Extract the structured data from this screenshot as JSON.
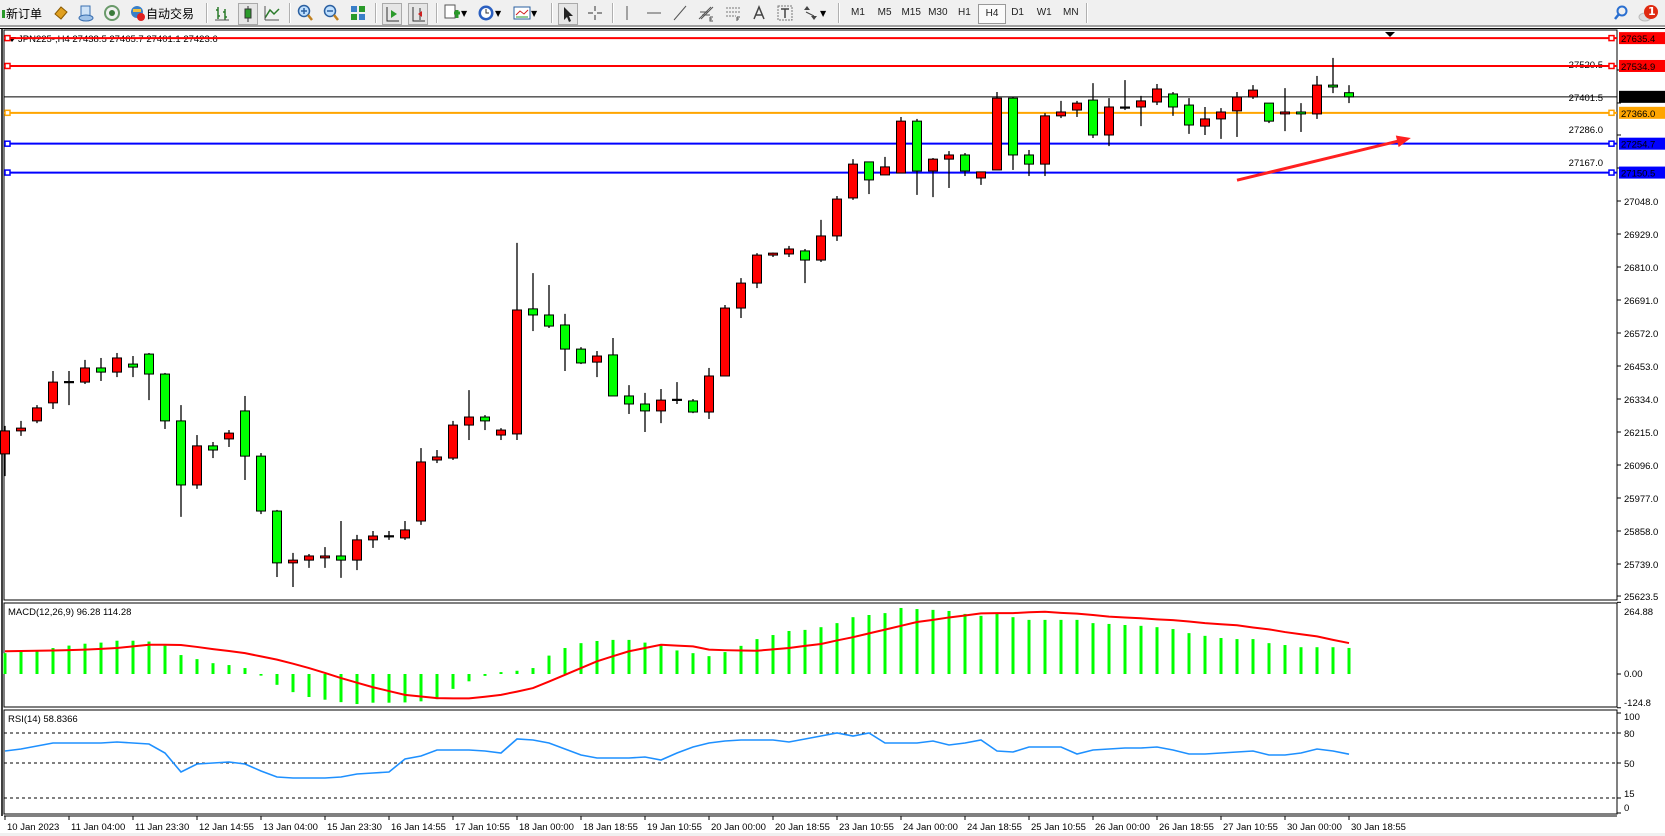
{
  "toolbar": {
    "new_order_label": "新订单",
    "auto_trading_label": "自动交易",
    "icons": [
      "new-order-icon",
      "metaeditor-icon",
      "navigator-icon",
      "market-watch-icon",
      "auto-trading-icon",
      "bar-chart-icon",
      "candlestick-icon",
      "line-chart-icon",
      "zoom-in-icon",
      "zoom-out-icon",
      "tile-windows-icon",
      "auto-scroll-icon",
      "chart-shift-icon",
      "indicators-icon",
      "periods-icon",
      "templates-icon",
      "cursor-icon",
      "crosshair-icon",
      "vertical-line-icon",
      "horizontal-line-icon",
      "trendline-icon",
      "fibonacci-icon",
      "fibo-levels-icon",
      "text-icon",
      "text-label-icon",
      "arrows-icon",
      "search-icon",
      "notification-icon"
    ],
    "timeframes": [
      "M1",
      "M5",
      "M15",
      "M30",
      "H1",
      "H4",
      "D1",
      "W1",
      "MN"
    ],
    "active_timeframe": "H4",
    "notification_count": "1"
  },
  "chart_header": "JPN225-,H4  27438.5 27465.7 27401.1 27423.6",
  "colors": {
    "bull": "#ff0000",
    "bear": "#00ff00",
    "macd_hist": "#00ff00",
    "macd_signal": "#ff0000",
    "rsi": "#1e90ff",
    "arrow": "#ff2020"
  },
  "chart_data": [
    {
      "type": "candlestick",
      "symbol": "JPN225-",
      "timeframe": "H4",
      "ylim": [
        25623.5,
        27635.4
      ],
      "y_ticks": [
        "27520.5",
        "27401.5",
        "27286.0",
        "27167.0",
        "27048.0",
        "26929.0",
        "26810.0",
        "26691.0",
        "26572.0",
        "26453.0",
        "26334.0",
        "26215.0",
        "26096.0",
        "25977.0",
        "25858.0",
        "25739.0",
        "25623.5"
      ],
      "x_tick_labels": [
        "10 Jan 2023",
        "11 Jan 04:00",
        "11 Jan 23:30",
        "12 Jan 14:55",
        "13 Jan 04:00",
        "15 Jan 23:30",
        "16 Jan 14:55",
        "17 Jan 10:55",
        "18 Jan 00:00",
        "18 Jan 18:55",
        "19 Jan 10:55",
        "20 Jan 00:00",
        "20 Jan 18:55",
        "23 Jan 10:55",
        "24 Jan 00:00",
        "24 Jan 18:55",
        "25 Jan 10:55",
        "26 Jan 00:00",
        "26 Jan 18:55",
        "27 Jan 10:55",
        "30 Jan 00:00",
        "30 Jan 18:55"
      ],
      "x_tick_every": 4,
      "ohlc": [
        [
          26136,
          26237,
          26056,
          26219
        ],
        [
          26219,
          26255,
          26201,
          26229
        ],
        [
          26255,
          26312,
          26247,
          26302
        ],
        [
          26320,
          26435,
          26298,
          26395
        ],
        [
          26395,
          26435,
          26312,
          26397
        ],
        [
          26395,
          26475,
          26388,
          26446
        ],
        [
          26446,
          26482,
          26399,
          26431
        ],
        [
          26431,
          26500,
          26413,
          26482
        ],
        [
          26460,
          26489,
          26413,
          26449
        ],
        [
          26496,
          26500,
          26330,
          26424
        ],
        [
          26424,
          26428,
          26226,
          26255
        ],
        [
          26255,
          26312,
          25909,
          26024
        ],
        [
          26024,
          26204,
          26010,
          26165
        ],
        [
          26165,
          26179,
          26121,
          26150
        ],
        [
          26190,
          26222,
          26161,
          26211
        ],
        [
          26291,
          26345,
          26042,
          26128
        ],
        [
          26128,
          26139,
          25919,
          25930
        ],
        [
          25930,
          25934,
          25692,
          25743
        ],
        [
          25743,
          25779,
          25656,
          25753
        ],
        [
          25753,
          25775,
          25725,
          25768
        ],
        [
          25761,
          25800,
          25725,
          25768
        ],
        [
          25768,
          25894,
          25689,
          25753
        ],
        [
          25753,
          25844,
          25717,
          25826
        ],
        [
          25826,
          25858,
          25797,
          25840
        ],
        [
          25840,
          25858,
          25826,
          25841
        ],
        [
          25833,
          25894,
          25826,
          25862
        ],
        [
          25894,
          26157,
          25880,
          26107
        ],
        [
          26114,
          26150,
          26103,
          26125
        ],
        [
          26121,
          26255,
          26114,
          26240
        ],
        [
          26240,
          26366,
          26186,
          26269
        ],
        [
          26269,
          26276,
          26222,
          26255
        ],
        [
          26204,
          26229,
          26186,
          26222
        ],
        [
          26208,
          26897,
          26186,
          26655
        ],
        [
          26659,
          26788,
          26579,
          26637
        ],
        [
          26637,
          26745,
          26590,
          26597
        ],
        [
          26601,
          26641,
          26435,
          26514
        ],
        [
          26514,
          26521,
          26460,
          26464
        ],
        [
          26467,
          26507,
          26413,
          26489
        ],
        [
          26493,
          26554,
          26345,
          26345
        ],
        [
          26345,
          26384,
          26280,
          26316
        ],
        [
          26316,
          26356,
          26215,
          26291
        ],
        [
          26291,
          26370,
          26247,
          26330
        ],
        [
          26330,
          26395,
          26316,
          26333
        ],
        [
          26327,
          26334,
          26283,
          26287
        ],
        [
          26287,
          26446,
          26262,
          26417
        ],
        [
          26417,
          26673,
          26417,
          26662
        ],
        [
          26662,
          26770,
          26626,
          26752
        ],
        [
          26752,
          26860,
          26734,
          26853
        ],
        [
          26853,
          26862,
          26846,
          26860
        ],
        [
          26857,
          26886,
          26846,
          26875
        ],
        [
          26868,
          26875,
          26752,
          26835
        ],
        [
          26835,
          26980,
          26828,
          26922
        ],
        [
          26922,
          27066,
          26904,
          27055
        ],
        [
          27059,
          27199,
          27052,
          27181
        ],
        [
          27189,
          27189,
          27073,
          27124
        ],
        [
          27142,
          27207,
          27142,
          27171
        ],
        [
          27149,
          27351,
          27149,
          27336
        ],
        [
          27336,
          27344,
          27070,
          27156
        ],
        [
          27156,
          27203,
          27062,
          27199
        ],
        [
          27199,
          27228,
          27095,
          27214
        ],
        [
          27214,
          27221,
          27138,
          27156
        ],
        [
          27131,
          27153,
          27106,
          27153
        ],
        [
          27160,
          27441,
          27160,
          27419
        ],
        [
          27419,
          27423,
          27160,
          27214
        ],
        [
          27214,
          27232,
          27138,
          27181
        ],
        [
          27181,
          27365,
          27138,
          27355
        ],
        [
          27355,
          27409,
          27347,
          27369
        ],
        [
          27376,
          27409,
          27351,
          27401
        ],
        [
          27412,
          27473,
          27275,
          27286
        ],
        [
          27286,
          27419,
          27246,
          27387
        ],
        [
          27385,
          27484,
          27376,
          27387
        ],
        [
          27387,
          27427,
          27318,
          27409
        ],
        [
          27405,
          27470,
          27394,
          27452
        ],
        [
          27434,
          27441,
          27355,
          27387
        ],
        [
          27394,
          27419,
          27290,
          27322
        ],
        [
          27318,
          27387,
          27286,
          27344
        ],
        [
          27344,
          27383,
          27272,
          27369
        ],
        [
          27373,
          27441,
          27279,
          27423
        ],
        [
          27423,
          27466,
          27416,
          27448
        ],
        [
          27401,
          27401,
          27329,
          27336
        ],
        [
          27362,
          27455,
          27300,
          27369
        ],
        [
          27369,
          27401,
          27297,
          27362
        ],
        [
          27362,
          27499,
          27344,
          27466
        ],
        [
          27466,
          27564,
          27437,
          27459
        ],
        [
          27438.5,
          27465.7,
          27401.1,
          27423.6
        ]
      ],
      "horizontal_lines": [
        {
          "price": 27635.4,
          "label": "27635.4",
          "color": "#ff0000"
        },
        {
          "price": 27534.9,
          "label": "27534.9",
          "color": "#ff0000"
        },
        {
          "price": 27366.0,
          "label": "27366.0",
          "color": "#ffa500"
        },
        {
          "price": 27254.7,
          "label": "27254.7",
          "color": "#0000ff"
        },
        {
          "price": 27150.5,
          "label": "27150.5",
          "color": "#0000ff"
        }
      ],
      "current_price": {
        "price": 27423.6,
        "label": "27423.6",
        "color": "#000000"
      },
      "trend_arrow": {
        "from": {
          "candle": 77,
          "price": 27123
        },
        "to": {
          "candle": 87.5,
          "price": 27270
        },
        "color": "#ff2020"
      }
    },
    {
      "type": "bar+line",
      "title": "MACD(12,26,9) 96.28 114.28",
      "ylim": [
        -124.8,
        264.88
      ],
      "y_ticks": [
        "264.88",
        "0.00",
        "-124.8"
      ],
      "histogram": [
        77,
        84,
        84,
        96,
        105,
        112,
        116,
        123,
        123,
        120,
        105,
        70,
        55,
        40,
        33,
        22,
        -6,
        -40,
        -67,
        -85,
        -95,
        -104,
        -111,
        -106,
        -106,
        -105,
        -101,
        -93,
        -55,
        -27,
        -7,
        7,
        12,
        22,
        68,
        96,
        114,
        122,
        126,
        126,
        116,
        105,
        87,
        77,
        66,
        81,
        104,
        129,
        144,
        159,
        163,
        173,
        188,
        210,
        218,
        225,
        244,
        240,
        237,
        233,
        222,
        215,
        222,
        210,
        200,
        200,
        200,
        200,
        188,
        185,
        181,
        178,
        173,
        166,
        151,
        141,
        133,
        129,
        129,
        114,
        107,
        99,
        99,
        99,
        96.28
      ],
      "signal": [
        84,
        85,
        86,
        87,
        88,
        90,
        93,
        96,
        102,
        108,
        108,
        107,
        100,
        92,
        85,
        77,
        65,
        53,
        38,
        22,
        4,
        -15,
        -32,
        -49,
        -63,
        -77,
        -83,
        -89,
        -90,
        -90,
        -84,
        -77,
        -65,
        -52,
        -28,
        -3,
        22,
        47,
        66,
        84,
        96,
        108,
        105,
        102,
        90,
        88,
        87,
        86,
        91,
        96,
        104,
        111,
        124,
        136,
        150,
        164,
        178,
        192,
        200,
        209,
        216,
        224,
        225,
        225,
        228,
        230,
        226,
        223,
        218,
        212,
        209,
        206,
        202,
        199,
        194,
        188,
        184,
        180,
        172,
        165,
        155,
        147,
        139,
        126,
        114.28
      ]
    },
    {
      "type": "line",
      "title": "RSI(14) 58.8366",
      "ylim": [
        0,
        100
      ],
      "y_ticks": [
        "100",
        "80",
        "50",
        "15",
        "0"
      ],
      "levels": [
        80,
        50,
        15
      ],
      "values": [
        62,
        64,
        67,
        70,
        70,
        70,
        70,
        71,
        70,
        69,
        60,
        41,
        49,
        50,
        51,
        49,
        42,
        36,
        35,
        35,
        35,
        36,
        39,
        40,
        41,
        54,
        57,
        63,
        63,
        63,
        62,
        60,
        74,
        73,
        70,
        64,
        58,
        55,
        55,
        55,
        56,
        53,
        60,
        66,
        70,
        72,
        73,
        73,
        73,
        71,
        74,
        77,
        80,
        77,
        80,
        70,
        70,
        70,
        72,
        68,
        70,
        73,
        62,
        61,
        66,
        66,
        66,
        59,
        63,
        64,
        65,
        65,
        66,
        63,
        59,
        59,
        60,
        61,
        62,
        58,
        58,
        60,
        64,
        62,
        58.8366
      ]
    }
  ]
}
